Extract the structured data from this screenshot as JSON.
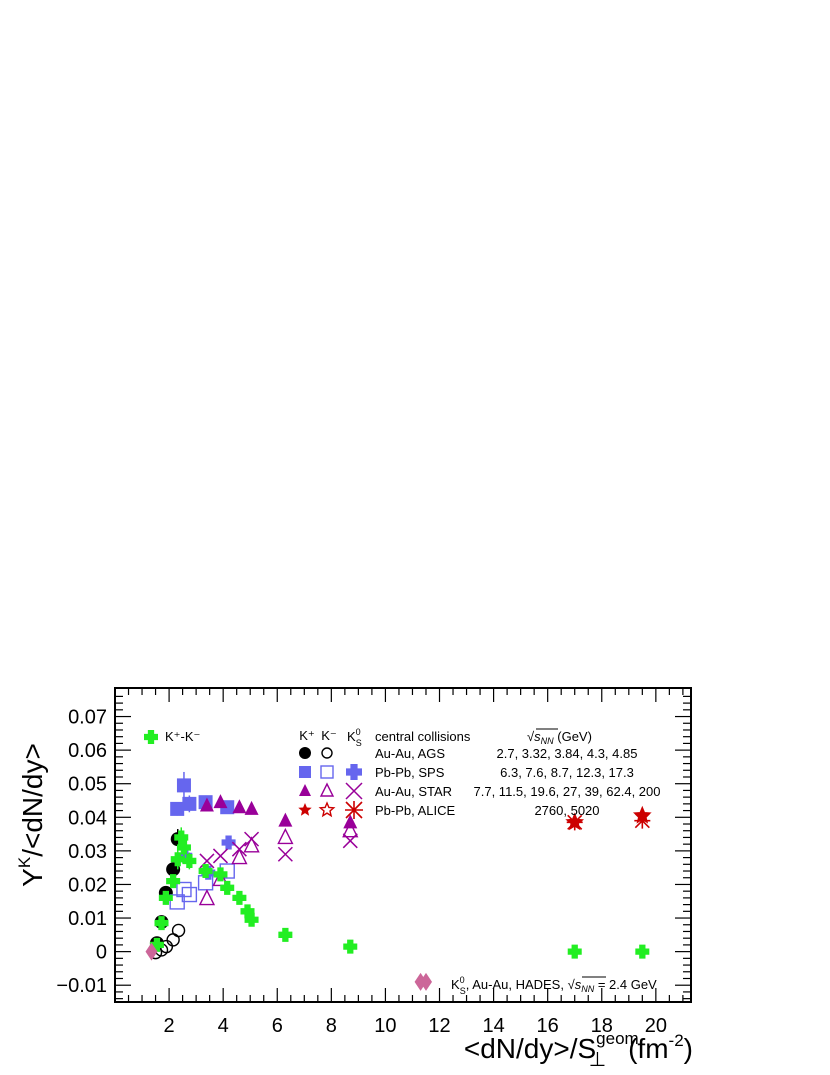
{
  "chart_data": {
    "type": "scatter",
    "xlabel": "<dN/dy>/S",
    "xlabel_sub": "⊥",
    "xlabel_sup": "geom",
    "xlabel_unit": "(fm",
    "xlabel_unit_sup": "-2",
    "xlabel_unit_close": ")",
    "ylabel_pre": "Y",
    "ylabel_sup": "K",
    "ylabel_post": "/<dN/dy>",
    "xlim": [
      0,
      21.3
    ],
    "ylim": [
      -0.015,
      0.0785
    ],
    "x_ticks": [
      2,
      4,
      6,
      8,
      10,
      12,
      14,
      16,
      18,
      20
    ],
    "x_tick_labels": [
      "2",
      "4",
      "6",
      "8",
      "10",
      "12",
      "14",
      "16",
      "18",
      "20"
    ],
    "y_ticks": [
      -0.01,
      0,
      0.01,
      0.02,
      0.03,
      0.04,
      0.05,
      0.06,
      0.07
    ],
    "y_tick_labels": [
      "−0.01",
      "0",
      "0.01",
      "0.02",
      "0.03",
      "0.04",
      "0.05",
      "0.06",
      "0.07"
    ],
    "grid": false,
    "legend_position": "top",
    "legend": {
      "diff_label": "K⁺-K⁻",
      "col_kplus": "K⁺",
      "col_kminus": "K⁻",
      "col_k0_main": "K",
      "col_k0_sup": "0",
      "col_k0_sub": "S",
      "col_systems": "central collisions",
      "col_energy_pre": "√",
      "col_energy_var": "s",
      "col_energy_sub": "NN",
      "col_energy_unit": " (GeV)",
      "rows": [
        {
          "system": "Au-Au, AGS",
          "energies": "2.7, 3.32, 3.84, 4.3, 4.85"
        },
        {
          "system": "Pb-Pb, SPS",
          "energies": "6.3, 7.6, 8.7, 12.3, 17.3"
        },
        {
          "system": "Au-Au, STAR",
          "energies": "7.7, 11.5, 19.6, 27, 39, 62.4,  200"
        },
        {
          "system": "Pb-Pb, ALICE",
          "energies": "2760, 5020"
        }
      ],
      "hades_text_pre": "K",
      "hades_text_sup": "0",
      "hades_text_sub": "S",
      "hades_text_mid": ", Au-Au, HADES, ",
      "hades_text_sqrt": "√",
      "hades_text_var": "s",
      "hades_text_varsub": "NN",
      "hades_text_post": " = 2.4 GeV"
    },
    "colors": {
      "ags": "#000000",
      "sps": "#6666ee",
      "star": "#990099",
      "alice": "#cc0000",
      "diff": "#22ee22",
      "hades": "#cc6699"
    },
    "series": [
      {
        "name": "K⁺ Au-Au, AGS",
        "marker": "filled-circle",
        "color": "#000000",
        "points": [
          [
            1.55,
            0.0025
          ],
          [
            1.72,
            0.0088
          ],
          [
            1.88,
            0.0175
          ],
          [
            2.15,
            0.0245
          ],
          [
            2.32,
            0.0335
          ]
        ],
        "y_err": [
          0.001,
          0.0015,
          0.002,
          0.002,
          0.003
        ]
      },
      {
        "name": "K⁻ Au-Au, AGS",
        "marker": "open-circle",
        "color": "#000000",
        "points": [
          [
            1.5,
            -0.0003
          ],
          [
            1.72,
            0.0005
          ],
          [
            1.9,
            0.0015
          ],
          [
            2.15,
            0.0035
          ],
          [
            2.35,
            0.0063
          ]
        ]
      },
      {
        "name": "K⁺ Pb-Pb, SPS",
        "marker": "filled-square",
        "color": "#6666ee",
        "points": [
          [
            2.3,
            0.0425
          ],
          [
            2.55,
            0.0495
          ],
          [
            2.75,
            0.044
          ],
          [
            3.35,
            0.0445
          ],
          [
            4.15,
            0.043
          ]
        ],
        "y_err": [
          0.002,
          0.004,
          0.0025,
          0.002,
          0.002
        ]
      },
      {
        "name": "K⁻ Pb-Pb, SPS",
        "marker": "open-square",
        "color": "#6666ee",
        "points": [
          [
            2.3,
            0.0148
          ],
          [
            2.55,
            0.0185
          ],
          [
            2.75,
            0.017
          ],
          [
            3.35,
            0.0205
          ],
          [
            4.15,
            0.024
          ]
        ]
      },
      {
        "name": "K⁰S Pb-Pb, SPS",
        "marker": "cross",
        "color": "#6666ee",
        "points": [
          [
            2.6,
            0.0285
          ],
          [
            3.45,
            0.0235
          ],
          [
            4.2,
            0.0325
          ]
        ]
      },
      {
        "name": "K⁺ Au-Au, STAR",
        "marker": "filled-triangle",
        "color": "#990099",
        "points": [
          [
            3.4,
            0.0435
          ],
          [
            3.9,
            0.0445
          ],
          [
            4.6,
            0.043
          ],
          [
            5.05,
            0.0425
          ],
          [
            6.3,
            0.039
          ],
          [
            8.7,
            0.0385
          ]
        ]
      },
      {
        "name": "K⁻ Au-Au, STAR",
        "marker": "open-triangle",
        "color": "#990099",
        "points": [
          [
            3.4,
            0.0158
          ],
          [
            3.9,
            0.0215
          ],
          [
            4.6,
            0.028
          ],
          [
            5.05,
            0.0315
          ],
          [
            6.3,
            0.034
          ],
          [
            8.7,
            0.036
          ]
        ]
      },
      {
        "name": "K⁰S Au-Au, STAR",
        "marker": "x",
        "color": "#990099",
        "points": [
          [
            3.4,
            0.027
          ],
          [
            3.9,
            0.0285
          ],
          [
            4.6,
            0.0305
          ],
          [
            5.05,
            0.0335
          ],
          [
            6.3,
            0.029
          ],
          [
            8.7,
            0.033
          ]
        ]
      },
      {
        "name": "K⁺ Pb-Pb, ALICE",
        "marker": "filled-star",
        "color": "#cc0000",
        "points": [
          [
            17.0,
            0.0385
          ],
          [
            19.5,
            0.0405
          ]
        ]
      },
      {
        "name": "K⁻ Pb-Pb, ALICE",
        "marker": "open-star",
        "color": "#cc0000",
        "points": [
          [
            17.0,
            0.0385
          ],
          [
            19.5,
            0.0405
          ]
        ]
      },
      {
        "name": "K⁰S Pb-Pb, ALICE",
        "marker": "asterisk",
        "color": "#cc0000",
        "points": [
          [
            17.0,
            0.0385
          ],
          [
            19.5,
            0.039
          ]
        ]
      },
      {
        "name": "K⁺-K⁻",
        "marker": "cross",
        "color": "#22ee22",
        "points": [
          [
            1.55,
            0.002
          ],
          [
            1.72,
            0.0085
          ],
          [
            1.88,
            0.016
          ],
          [
            2.15,
            0.021
          ],
          [
            2.32,
            0.0275
          ],
          [
            2.55,
            0.031
          ],
          [
            2.75,
            0.027
          ],
          [
            3.35,
            0.024
          ],
          [
            4.15,
            0.019
          ],
          [
            4.6,
            0.016
          ],
          [
            5.05,
            0.0095
          ],
          [
            4.9,
            0.012
          ],
          [
            3.9,
            0.023
          ],
          [
            6.3,
            0.005
          ],
          [
            8.7,
            0.0015
          ],
          [
            17.0,
            0.0
          ],
          [
            19.5,
            0.0
          ],
          [
            2.45,
            0.034
          ]
        ],
        "y_err": [
          0.001,
          0.0015,
          0.002,
          0.002,
          0.003,
          0.003,
          0.0025,
          0.002,
          0.002,
          0.0015,
          0.001,
          0.001,
          0.002,
          0.0005,
          0.0005,
          0.0005,
          0.0005,
          0.003
        ]
      },
      {
        "name": "K⁰S Au-Au, HADES",
        "marker": "diamond",
        "color": "#cc6699",
        "points": [
          [
            1.35,
            0.0
          ],
          [
            11.3,
            -0.009
          ]
        ]
      }
    ]
  }
}
